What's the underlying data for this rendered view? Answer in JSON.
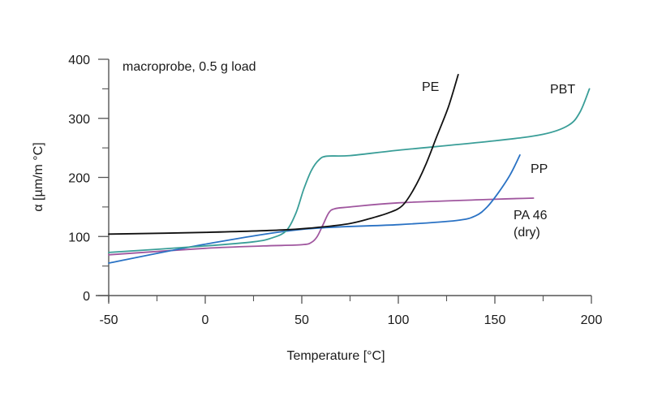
{
  "chart_data": {
    "type": "line",
    "title": "",
    "annotation": "macroprobe, 0.5 g load",
    "xlabel": "Temperature [°C]",
    "ylabel": "α [µm/m °C]",
    "xlim": [
      -50,
      200
    ],
    "ylim": [
      0,
      400
    ],
    "xticks": [
      -50,
      0,
      50,
      100,
      150,
      200
    ],
    "xticks_minor": [
      -25,
      25,
      75,
      125,
      175
    ],
    "yticks": [
      0,
      100,
      200,
      300,
      400
    ],
    "yticks_minor": [
      50,
      150,
      250,
      350
    ],
    "grid": false,
    "legend": "inline labels",
    "series": [
      {
        "name": "PE",
        "label": "PE",
        "color": "#111111",
        "points": [
          [
            -50,
            104
          ],
          [
            0,
            107
          ],
          [
            40,
            111
          ],
          [
            60,
            116
          ],
          [
            75,
            122
          ],
          [
            85,
            130
          ],
          [
            95,
            140
          ],
          [
            102,
            152
          ],
          [
            108,
            180
          ],
          [
            114,
            220
          ],
          [
            120,
            270
          ],
          [
            126,
            320
          ],
          [
            131,
            374
          ]
        ]
      },
      {
        "name": "PBT",
        "label": "PBT",
        "color": "#3a9e98",
        "points": [
          [
            -50,
            73
          ],
          [
            0,
            84
          ],
          [
            25,
            91
          ],
          [
            35,
            98
          ],
          [
            42,
            110
          ],
          [
            47,
            140
          ],
          [
            51,
            180
          ],
          [
            55,
            212
          ],
          [
            59,
            230
          ],
          [
            63,
            236
          ],
          [
            75,
            237
          ],
          [
            100,
            246
          ],
          [
            150,
            262
          ],
          [
            175,
            273
          ],
          [
            188,
            288
          ],
          [
            194,
            310
          ],
          [
            199,
            350
          ]
        ]
      },
      {
        "name": "PP",
        "label": "PP",
        "color": "#2a72c4",
        "points": [
          [
            -50,
            55
          ],
          [
            0,
            87
          ],
          [
            50,
            112
          ],
          [
            100,
            120
          ],
          [
            130,
            127
          ],
          [
            140,
            135
          ],
          [
            146,
            150
          ],
          [
            152,
            175
          ],
          [
            158,
            205
          ],
          [
            163,
            238
          ]
        ]
      },
      {
        "name": "PA 46 (dry)",
        "label_line1": "PA 46",
        "label_line2": "(dry)",
        "color": "#a0579f",
        "points": [
          [
            -50,
            69
          ],
          [
            0,
            80
          ],
          [
            30,
            84
          ],
          [
            50,
            86
          ],
          [
            55,
            90
          ],
          [
            58,
            100
          ],
          [
            61,
            120
          ],
          [
            64,
            140
          ],
          [
            67,
            147
          ],
          [
            75,
            150
          ],
          [
            100,
            157
          ],
          [
            150,
            163
          ],
          [
            170,
            165
          ]
        ]
      }
    ]
  }
}
